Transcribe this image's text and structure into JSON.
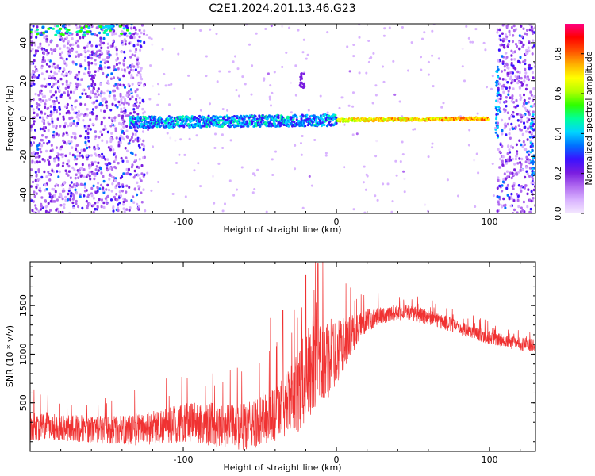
{
  "title": "C2E1.2024.201.13.46.G23",
  "chart_data": [
    {
      "type": "heatmap",
      "xlabel": "Height of straight line (km)",
      "ylabel": "Frequency (Hz)",
      "xlim": [
        -200,
        130
      ],
      "ylim": [
        -50,
        50
      ],
      "xticks": [
        -100,
        0,
        100
      ],
      "xtick_labels": [
        "-100",
        "0",
        "100"
      ],
      "yticks": [
        -40,
        -20,
        0,
        20,
        40
      ],
      "ytick_labels": [
        "-40",
        "-20",
        "0",
        "20",
        "40"
      ],
      "colorbar": {
        "label": "Normalized spectral amplitude",
        "range": [
          0,
          0.95
        ],
        "ticks": [
          0.0,
          0.2,
          0.4,
          0.6,
          0.8
        ],
        "tick_labels": [
          "0.0",
          "0.2",
          "0.4",
          "0.6",
          "0.8"
        ],
        "colors": [
          "#f4e8ff",
          "#d9b3ff",
          "#b06af0",
          "#7a1de0",
          "#3a12ff",
          "#0070ff",
          "#00d5ff",
          "#00ff9a",
          "#2dff00",
          "#b4ff00",
          "#ffff00",
          "#ffb000",
          "#ff5000",
          "#ff0000",
          "#ff0080"
        ]
      },
      "features": [
        {
          "name": "dominant-signal-trace",
          "x_range": [
            -135,
            100
          ],
          "frequency_start": -2,
          "frequency_end": 0
        },
        {
          "name": "noise-band-left",
          "x_range": [
            -200,
            -125
          ],
          "frequency_range": [
            -50,
            50
          ]
        },
        {
          "name": "noise-band-right",
          "x_range": [
            105,
            130
          ],
          "frequency_range": [
            -50,
            50
          ]
        }
      ]
    },
    {
      "type": "line",
      "xlabel": "Height of straight line (km)",
      "ylabel": "SNR (10 * v/v)",
      "xlim": [
        -200,
        130
      ],
      "ylim": [
        0,
        1950
      ],
      "xticks": [
        -100,
        0,
        100
      ],
      "xtick_labels": [
        "-100",
        "0",
        "100"
      ],
      "yticks": [
        500,
        1000,
        1500
      ],
      "ytick_labels": [
        "500",
        "1000",
        "1500"
      ],
      "series": [
        {
          "name": "SNR",
          "color": "#f03232",
          "x": [
            -200,
            -190,
            -180,
            -170,
            -160,
            -150,
            -140,
            -130,
            -120,
            -110,
            -100,
            -90,
            -80,
            -70,
            -60,
            -50,
            -40,
            -30,
            -25,
            -20,
            -15,
            -10,
            -5,
            0,
            5,
            10,
            15,
            20,
            25,
            30,
            35,
            40,
            45,
            50,
            60,
            70,
            80,
            90,
            100,
            110,
            120,
            130
          ],
          "y": [
            250,
            260,
            250,
            240,
            230,
            225,
            220,
            230,
            250,
            270,
            290,
            300,
            280,
            260,
            250,
            300,
            380,
            520,
            620,
            780,
            850,
            900,
            950,
            1020,
            1120,
            1200,
            1280,
            1350,
            1380,
            1400,
            1420,
            1430,
            1430,
            1420,
            1380,
            1330,
            1270,
            1220,
            1170,
            1130,
            1110,
            1080
          ],
          "noise_amplitude": [
            150,
            150,
            140,
            140,
            140,
            150,
            150,
            170,
            180,
            190,
            200,
            220,
            230,
            230,
            240,
            260,
            300,
            350,
            420,
            480,
            500,
            480,
            420,
            350,
            260,
            200,
            150,
            120,
            100,
            90,
            80,
            80,
            80,
            80,
            80,
            80,
            70,
            70,
            70,
            70,
            70,
            70
          ],
          "peaks": [
            {
              "x": -12,
              "y": 1930
            },
            {
              "x": -20,
              "y": 1810
            },
            {
              "x": -43,
              "y": 1370
            },
            {
              "x": -35,
              "y": 1450
            }
          ]
        }
      ]
    }
  ]
}
